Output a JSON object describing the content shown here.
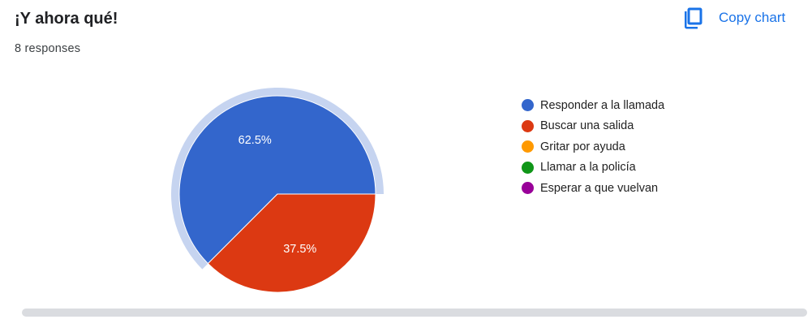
{
  "header": {
    "title": "¡Y ahora qué!",
    "responses": "8 responses",
    "copy_label": "Copy chart",
    "copy_icon": "copy-icon",
    "accent_color": "#1a73e8"
  },
  "chart_data": {
    "type": "pie",
    "title": "¡Y ahora qué!",
    "categories": [
      "Responder a la llamada",
      "Buscar una salida",
      "Gritar por ayuda",
      "Llamar a la policía",
      "Esperar a que vuelvan"
    ],
    "values": [
      62.5,
      37.5,
      0,
      0,
      0
    ],
    "data_labels": [
      "62.5%",
      "37.5%",
      "",
      "",
      ""
    ],
    "colors": [
      "#3366cc",
      "#dc3912",
      "#ff9900",
      "#109618",
      "#990099"
    ],
    "highlight_color": "#c6d4f0",
    "legend_position": "right",
    "start_angle_deg": 0,
    "direction": "counter-clockwise",
    "highlighted_series": "Responder a la llamada"
  },
  "legend": {
    "items": [
      {
        "label": "Responder a la llamada",
        "color": "#3366cc"
      },
      {
        "label": "Buscar una salida",
        "color": "#dc3912"
      },
      {
        "label": "Gritar por ayuda",
        "color": "#ff9900"
      },
      {
        "label": "Llamar a la policía",
        "color": "#109618"
      },
      {
        "label": "Esperar a que vuelvan",
        "color": "#990099"
      }
    ]
  }
}
